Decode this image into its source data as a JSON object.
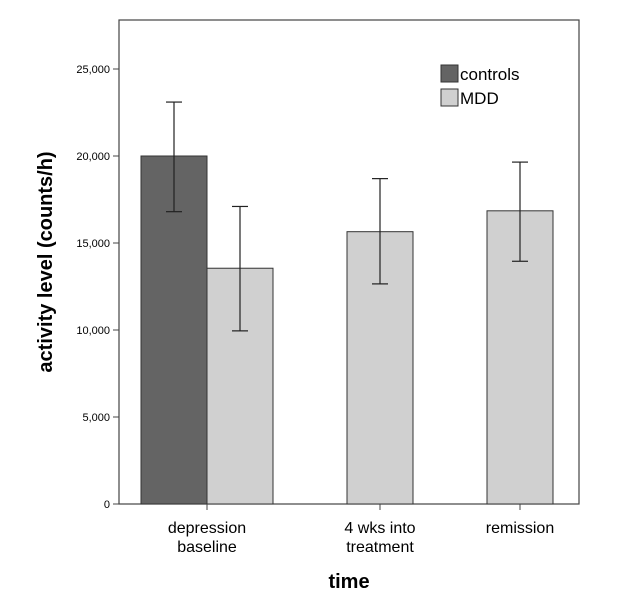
{
  "chart_data": {
    "type": "bar",
    "title": "",
    "xlabel": "time",
    "ylabel": "activity level (counts/h)",
    "ylim": [
      0,
      27500
    ],
    "yticks": [
      0,
      5000,
      10000,
      15000,
      20000,
      25000
    ],
    "ytick_labels": [
      "0",
      "5,000",
      "10,000",
      "15,000",
      "20,000",
      "25,000"
    ],
    "categories": [
      [
        "depression",
        "baseline"
      ],
      [
        "4 wks into",
        "treatment"
      ],
      [
        "remission"
      ]
    ],
    "legend_position": "top-right",
    "series": [
      {
        "name": "controls",
        "color": "#646464",
        "values": [
          20000,
          null,
          null
        ],
        "error_low": [
          16800,
          null,
          null
        ],
        "error_high": [
          23100,
          null,
          null
        ]
      },
      {
        "name": "MDD",
        "color": "#d0d0d0",
        "values": [
          13550,
          15650,
          16850
        ],
        "error_low": [
          9950,
          12650,
          13950
        ],
        "error_high": [
          17100,
          18700,
          19650
        ]
      }
    ]
  }
}
